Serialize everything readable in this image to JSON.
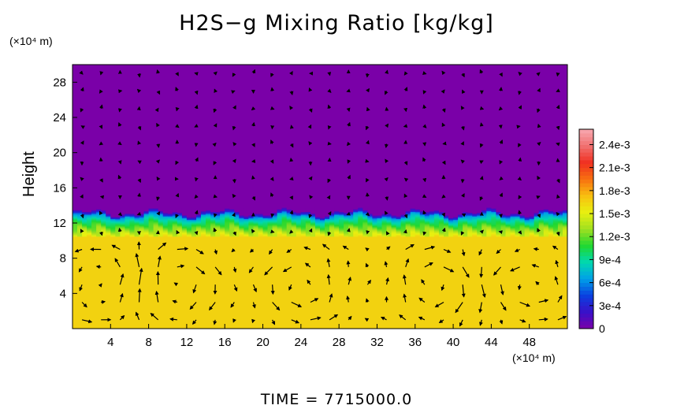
{
  "chart_data": {
    "type": "heatmap",
    "title": "H2S−g Mixing Ratio [kg/kg]",
    "xlabel": "",
    "ylabel": "Height",
    "x_unit": "(×10⁴ m)",
    "y_unit": "(×10⁴ m)",
    "xlim": [
      0,
      52
    ],
    "ylim": [
      0,
      30
    ],
    "x_ticks": [
      "4",
      "8",
      "12",
      "16",
      "20",
      "24",
      "28",
      "32",
      "36",
      "40",
      "44",
      "48"
    ],
    "x_tick_values": [
      4,
      8,
      12,
      16,
      20,
      24,
      28,
      32,
      36,
      40,
      44,
      48
    ],
    "y_ticks": [
      "4",
      "8",
      "12",
      "16",
      "20",
      "24",
      "28"
    ],
    "y_tick_values": [
      4,
      8,
      12,
      16,
      20,
      24,
      28
    ],
    "colorbar": {
      "min": 0,
      "max": 0.0026,
      "ticks": [
        "0",
        "3e-4",
        "6e-4",
        "9e-4",
        "1.2e-3",
        "1.5e-3",
        "1.8e-3",
        "2.1e-3",
        "2.4e-3"
      ],
      "tick_values": [
        0,
        0.0003,
        0.0006,
        0.0009,
        0.0012,
        0.0015,
        0.0018,
        0.0021,
        0.0024
      ],
      "colors": [
        "#7a00a8",
        "#3a10c8",
        "#0a40e0",
        "#00a0e8",
        "#00d8b0",
        "#20d830",
        "#a0e020",
        "#e8f010",
        "#f8c010",
        "#f87010",
        "#f03020",
        "#f07070",
        "#f8a8b0"
      ]
    },
    "field": {
      "lower_value": 0.00165,
      "upper_value": 0,
      "interface_height": 13.2,
      "transition_band": [
        10.5,
        13.8
      ]
    },
    "vector_field": {
      "dx": 2,
      "dy": 2,
      "circulation_cells_center_x": [
        3,
        11,
        24,
        38,
        48
      ],
      "circulation_cell_height": 5
    },
    "time_label": "TIME  =  7715000.0"
  }
}
